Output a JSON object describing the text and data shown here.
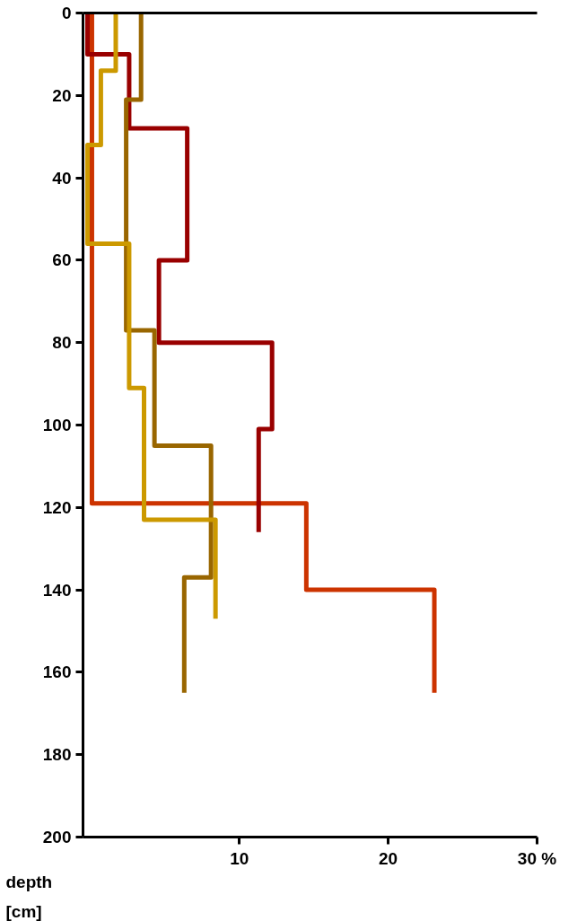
{
  "chart_data": {
    "type": "line",
    "ylabel": "depth [cm]",
    "xlim": [
      -0.5,
      30
    ],
    "ylim": [
      200,
      0
    ],
    "xticks": [
      10,
      20,
      {
        "value": 30,
        "label": "30 %"
      }
    ],
    "yticks": [
      0,
      20,
      40,
      60,
      80,
      100,
      120,
      140,
      160,
      180,
      200
    ],
    "grid": false,
    "marker": "none",
    "line_style": "solid",
    "series": [
      {
        "color": "#cc3300",
        "x": [
          0.1,
          0.1,
          14.5,
          14.5,
          23.1,
          23.1
        ],
        "values": [
          0,
          119,
          119,
          140,
          140,
          165
        ]
      },
      {
        "color": "#990000",
        "x": [
          -0.2,
          -0.2,
          2.6,
          2.6,
          6.5,
          6.5,
          4.6,
          4.6,
          12.2,
          12.2,
          11.3,
          11.3
        ],
        "values": [
          0,
          10,
          10,
          28,
          28,
          60,
          60,
          80,
          80,
          101,
          101,
          126
        ]
      },
      {
        "color": "#996600",
        "x": [
          3.4,
          3.4,
          2.4,
          2.4,
          4.3,
          4.3,
          8.1,
          8.1,
          6.3,
          6.3
        ],
        "values": [
          0,
          21,
          21,
          77,
          77,
          105,
          105,
          137,
          137,
          165
        ]
      },
      {
        "color": "#cc9900",
        "x": [
          1.7,
          1.7,
          0.7,
          0.7,
          -0.2,
          -0.2,
          2.6,
          2.6,
          3.6,
          3.6,
          8.4,
          8.4
        ],
        "values": [
          0,
          14,
          14,
          32,
          32,
          56,
          56,
          91,
          91,
          123,
          123,
          147
        ]
      }
    ]
  }
}
